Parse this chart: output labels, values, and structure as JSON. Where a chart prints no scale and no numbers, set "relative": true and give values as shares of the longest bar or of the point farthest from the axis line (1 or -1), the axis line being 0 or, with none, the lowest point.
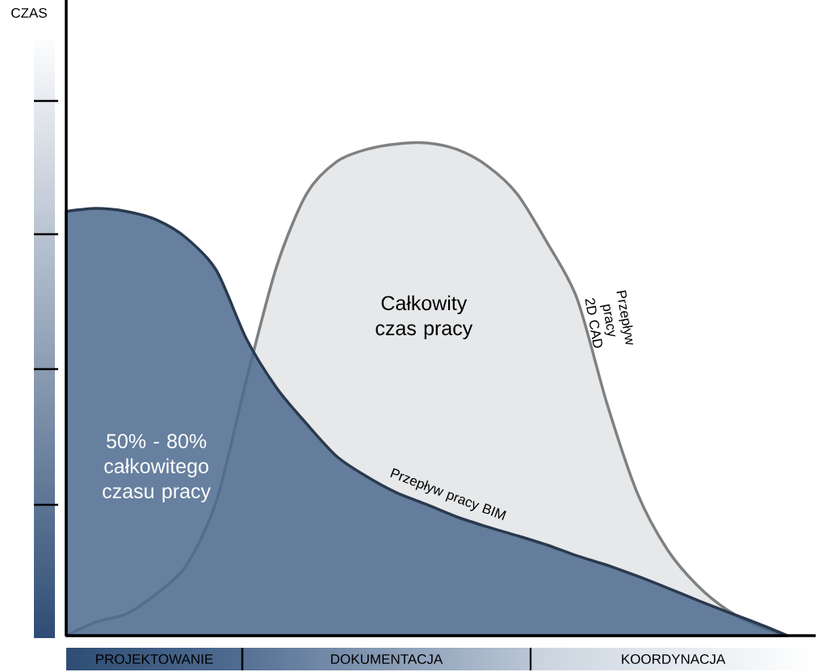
{
  "chart_data": {
    "type": "area",
    "relative": true,
    "categories": [
      null,
      null,
      null,
      null,
      null,
      null,
      null,
      null,
      null,
      null,
      null,
      null,
      null,
      null,
      null,
      null,
      null,
      null,
      null,
      null,
      null,
      null,
      null,
      null,
      null
    ],
    "series": [
      {
        "name": "Przepływ pracy 2D CAD",
        "color": "#e6e8ea",
        "values": [
          0,
          0.028,
          0.044,
          0.085,
          0.143,
          0.274,
          0.52,
          0.749,
          0.897,
          0.962,
          0.987,
          0.998,
          1,
          0.987,
          0.954,
          0.897,
          0.798,
          0.684,
          0.47,
          0.29,
          0.175,
          0.102,
          0.052,
          0.02,
          0
        ]
      },
      {
        "name": "Przepływ pracy BIM",
        "color": "#4c6a8e",
        "values": [
          0.861,
          0.867,
          0.861,
          0.844,
          0.807,
          0.741,
          0.602,
          0.503,
          0.43,
          0.364,
          0.323,
          0.29,
          0.266,
          0.241,
          0.221,
          0.203,
          0.184,
          0.162,
          0.143,
          0.121,
          0.097,
          0.072,
          0.048,
          0.025,
          0
        ]
      }
    ],
    "annotations": [
      "Całkowity czas pracy",
      "50% - 80% całkowitego czasu pracy",
      "PROJEKTOWANIE",
      "DOKUMENTACJA",
      "KOORDYNACJA",
      "CZAS"
    ]
  }
}
